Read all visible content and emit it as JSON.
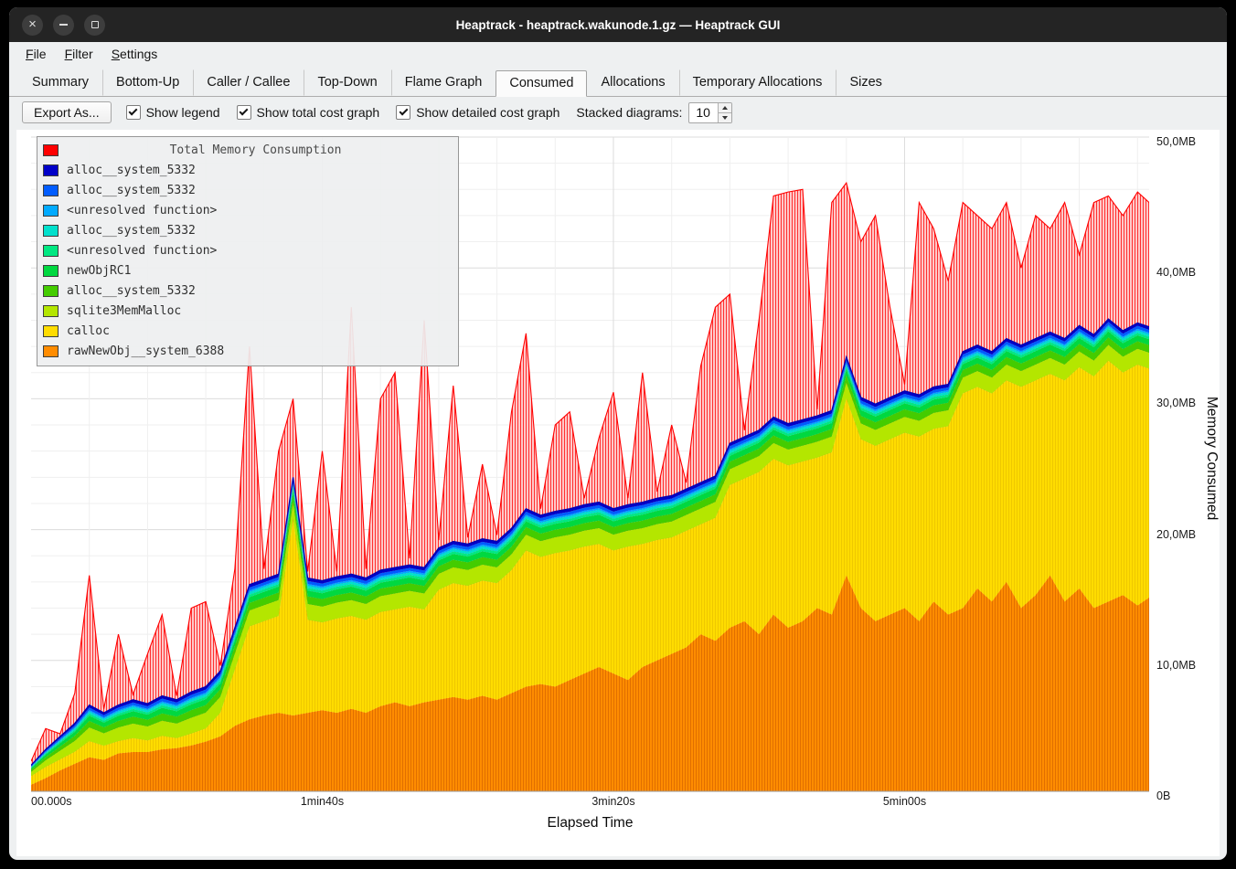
{
  "window": {
    "title": "Heaptrack - heaptrack.wakunode.1.gz — Heaptrack GUI"
  },
  "menu": {
    "items": [
      "File",
      "Filter",
      "Settings"
    ]
  },
  "tabs": {
    "items": [
      "Summary",
      "Bottom-Up",
      "Caller / Callee",
      "Top-Down",
      "Flame Graph",
      "Consumed",
      "Allocations",
      "Temporary Allocations",
      "Sizes"
    ],
    "active": "Consumed"
  },
  "toolbar": {
    "export_label": "Export As...",
    "checkboxes": [
      {
        "label": "Show legend",
        "checked": true
      },
      {
        "label": "Show total cost graph",
        "checked": true
      },
      {
        "label": "Show detailed cost graph",
        "checked": true
      }
    ],
    "stacked_label": "Stacked diagrams:",
    "stacked_value": "10"
  },
  "chart": {
    "xlabel": "Elapsed Time",
    "ylabel": "Memory Consumed",
    "ymax": 50,
    "xmax": 384,
    "y_ticks": [
      {
        "value": 0,
        "label": "0B"
      },
      {
        "value": 10,
        "label": "10,0MB"
      },
      {
        "value": 20,
        "label": "20,0MB"
      },
      {
        "value": 30,
        "label": "30,0MB"
      },
      {
        "value": 40,
        "label": "40,0MB"
      },
      {
        "value": 50,
        "label": "50,0MB"
      }
    ],
    "x_ticks": [
      {
        "value": 0,
        "label": "00.000s"
      },
      {
        "value": 100,
        "label": "1min40s"
      },
      {
        "value": 200,
        "label": "3min20s"
      },
      {
        "value": 300,
        "label": "5min00s"
      }
    ],
    "legend": {
      "title": "Total Memory Consumption",
      "title_color": "#ff0000",
      "entries": [
        {
          "label": "alloc__system_5332",
          "color": "#0000c8"
        },
        {
          "label": "alloc__system_5332",
          "color": "#005cff"
        },
        {
          "label": "<unresolved function>",
          "color": "#00aaff"
        },
        {
          "label": "alloc__system_5332",
          "color": "#00e0cc"
        },
        {
          "label": "<unresolved function>",
          "color": "#00e882"
        },
        {
          "label": "newObjRC1",
          "color": "#00d840"
        },
        {
          "label": "alloc__system_5332",
          "color": "#44cc00"
        },
        {
          "label": "sqlite3MemMalloc",
          "color": "#b4e600"
        },
        {
          "label": "calloc",
          "color": "#ffdc00"
        },
        {
          "label": "rawNewObj__system_6388",
          "color": "#ff8c00"
        }
      ]
    }
  },
  "chart_data": {
    "type": "area",
    "title": "Total Memory Consumption",
    "xlabel": "Elapsed Time",
    "ylabel": "Memory Consumed",
    "ylim": [
      0,
      50
    ],
    "x_unit": "seconds",
    "y_unit": "MB",
    "x": [
      0,
      5,
      10,
      15,
      20,
      25,
      30,
      35,
      40,
      45,
      50,
      55,
      60,
      65,
      70,
      75,
      80,
      85,
      90,
      95,
      100,
      105,
      110,
      115,
      120,
      125,
      130,
      135,
      140,
      145,
      150,
      155,
      160,
      165,
      170,
      175,
      180,
      185,
      190,
      195,
      200,
      205,
      210,
      215,
      220,
      225,
      230,
      235,
      240,
      245,
      250,
      255,
      260,
      265,
      270,
      275,
      280,
      285,
      290,
      295,
      300,
      305,
      310,
      315,
      320,
      325,
      330,
      335,
      340,
      345,
      350,
      355,
      360,
      365,
      370,
      375,
      380,
      384
    ],
    "total": {
      "name": "Total Memory Consumption",
      "color": "#ff0000",
      "pattern": {
        "bg": "#ffc9c9",
        "line": "#ff3030"
      },
      "values": [
        2.3,
        4.8,
        4.4,
        7.5,
        16.5,
        6.3,
        12.0,
        7.4,
        10.5,
        13.5,
        7.3,
        14.0,
        14.5,
        9.6,
        17.0,
        34.0,
        17.0,
        26.0,
        30.0,
        16.8,
        26.0,
        16.8,
        37.0,
        17.0,
        30.0,
        32.0,
        17.8,
        36.0,
        19.2,
        31.0,
        19.4,
        25.0,
        19.6,
        29.0,
        35.0,
        21.6,
        28.0,
        29.0,
        22.4,
        27.0,
        30.5,
        22.4,
        32.0,
        22.9,
        28.0,
        23.6,
        32.5,
        37.0,
        38.0,
        27.6,
        36.0,
        45.5,
        45.8,
        46.0,
        29.2,
        45.0,
        46.5,
        42.0,
        44.0,
        37.0,
        31.1,
        45.0,
        43.0,
        39.0,
        45.0,
        44.0,
        43.0,
        45.0,
        40.0,
        44.0,
        43.0,
        45.0,
        41.0,
        45.0,
        45.5,
        44.0,
        45.8,
        45.0
      ]
    },
    "stack_top": [
      2.0,
      3.2,
      4.2,
      5.2,
      6.6,
      6.0,
      6.6,
      7.0,
      6.7,
      7.3,
      7.0,
      7.6,
      8.0,
      9.2,
      12.5,
      15.8,
      16.2,
      16.6,
      24.0,
      16.3,
      16.1,
      16.4,
      16.6,
      16.3,
      16.9,
      17.1,
      17.3,
      17.1,
      18.6,
      19.1,
      18.9,
      19.3,
      19.1,
      20.1,
      21.6,
      21.1,
      21.4,
      21.6,
      21.9,
      22.1,
      21.6,
      21.9,
      22.1,
      22.4,
      22.6,
      23.1,
      23.6,
      24.1,
      26.6,
      27.1,
      27.6,
      28.6,
      28.1,
      28.4,
      28.7,
      29.1,
      33.2,
      30.1,
      29.6,
      30.1,
      30.6,
      30.3,
      30.9,
      31.1,
      33.6,
      34.1,
      33.6,
      34.6,
      34.1,
      34.6,
      35.1,
      34.6,
      35.6,
      34.9,
      36.1,
      35.2,
      35.8,
      35.5
    ],
    "stack_edge_color": "#0000b0",
    "base_series": [
      {
        "name": "rawNewObj__system_6388",
        "color": "#ff8c00",
        "pattern": {
          "bg": "#ff8c00",
          "line": "#e06f00"
        },
        "values": [
          0.5,
          1.0,
          1.6,
          2.1,
          2.6,
          2.4,
          2.9,
          3.0,
          3.0,
          3.2,
          3.3,
          3.5,
          3.8,
          4.2,
          5.0,
          5.5,
          5.8,
          6.0,
          5.8,
          6.0,
          6.2,
          6.0,
          6.3,
          6.0,
          6.5,
          6.8,
          6.5,
          6.8,
          7.0,
          7.2,
          7.0,
          7.3,
          7.0,
          7.5,
          8.0,
          8.2,
          8.0,
          8.5,
          9.0,
          9.5,
          9.0,
          8.5,
          9.5,
          10.0,
          10.5,
          11.0,
          12.0,
          11.5,
          12.5,
          13.0,
          12.0,
          13.5,
          12.5,
          13.0,
          14.0,
          13.5,
          16.5,
          14.0,
          13.0,
          13.5,
          14.0,
          13.0,
          14.5,
          13.5,
          14.0,
          15.5,
          14.5,
          16.0,
          14.0,
          15.0,
          16.5,
          14.5,
          15.5,
          14.0,
          14.5,
          15.0,
          14.2,
          14.8
        ]
      },
      {
        "name": "calloc",
        "color": "#ffdc00",
        "pattern": {
          "bg": "#ffdc00",
          "line": "#eec800"
        }
      }
    ],
    "minor": {
      "cap": 3.2,
      "ratio": 0.42,
      "series": [
        {
          "name": "sqlite3MemMalloc",
          "color": "#b4e600",
          "fraction": 0.38
        },
        {
          "name": "alloc__system_5332",
          "color": "#44cc00",
          "fraction": 0.18
        },
        {
          "name": "newObjRC1",
          "color": "#00d840",
          "fraction": 0.14
        },
        {
          "name": "<unresolved function>",
          "color": "#00e882",
          "fraction": 0.06
        },
        {
          "name": "alloc__system_5332",
          "color": "#00e0cc",
          "fraction": 0.06
        },
        {
          "name": "<unresolved function>",
          "color": "#00aaff",
          "fraction": 0.04
        },
        {
          "name": "alloc__system_5332",
          "color": "#005cff",
          "fraction": 0.07
        },
        {
          "name": "alloc__system_5332",
          "color": "#0000c8",
          "fraction": 0.07
        }
      ]
    }
  }
}
